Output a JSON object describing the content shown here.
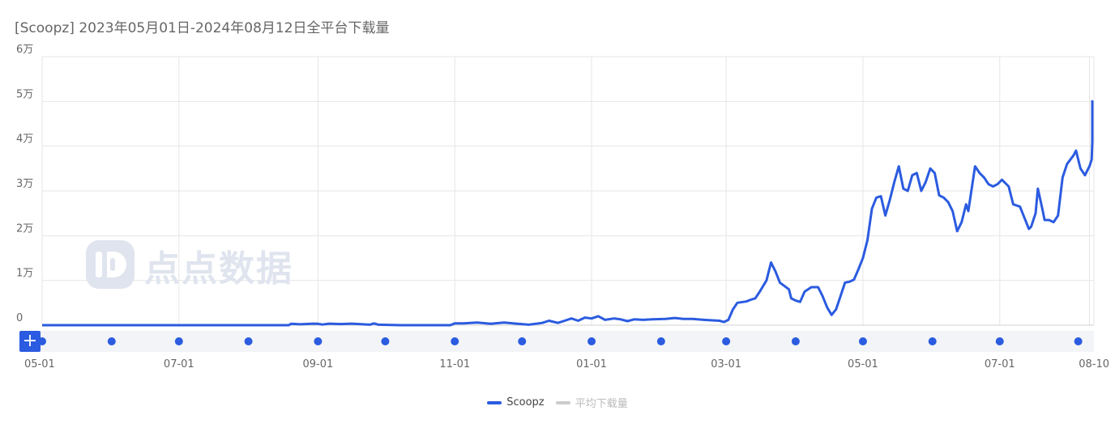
{
  "title": "[Scoopz]  2023年05月01日-2024年08月12日全平台下载量",
  "colors": {
    "series": "#2b5be0",
    "average": "#cccccc",
    "grid": "#e6e6e6",
    "slider_bg": "#f2f4f7",
    "handle": "#2b5be0",
    "dot": "#2b5be0",
    "watermark": "#dfe4ee"
  },
  "watermark": {
    "text": "点点数据",
    "icon": "diandian-logo-icon"
  },
  "chart_data": {
    "type": "line",
    "title": "[Scoopz]  2023年05月01日-2024年08月12日全平台下载量",
    "ylim": [
      0,
      60000
    ],
    "y_ticks": [
      {
        "value": 0,
        "label": "0"
      },
      {
        "value": 10000,
        "label": "1万"
      },
      {
        "value": 20000,
        "label": "2万"
      },
      {
        "value": 30000,
        "label": "3万"
      },
      {
        "value": 40000,
        "label": "4万"
      },
      {
        "value": 50000,
        "label": "5万"
      },
      {
        "value": 60000,
        "label": "6万"
      }
    ],
    "x_ticks": [
      "05-01",
      "07-01",
      "09-01",
      "11-01",
      "01-01",
      "03-01",
      "05-01",
      "07-01",
      "08-10"
    ],
    "x_tick_days": [
      0,
      61,
      123,
      184,
      245,
      305,
      366,
      427,
      467
    ],
    "x_range_days": [
      0,
      469
    ],
    "grid": true,
    "legend_position": "bottom-center",
    "series": [
      {
        "name": "Scoopz",
        "points": [
          [
            0,
            0
          ],
          [
            60,
            0
          ],
          [
            110,
            0
          ],
          [
            111,
            300
          ],
          [
            115,
            200
          ],
          [
            121,
            350
          ],
          [
            123,
            300
          ],
          [
            125,
            150
          ],
          [
            128,
            350
          ],
          [
            133,
            250
          ],
          [
            138,
            350
          ],
          [
            143,
            200
          ],
          [
            146,
            100
          ],
          [
            148,
            400
          ],
          [
            150,
            100
          ],
          [
            160,
            0
          ],
          [
            175,
            0
          ],
          [
            182,
            0
          ],
          [
            184,
            400
          ],
          [
            188,
            400
          ],
          [
            194,
            600
          ],
          [
            200,
            300
          ],
          [
            206,
            600
          ],
          [
            212,
            300
          ],
          [
            217,
            100
          ],
          [
            223,
            500
          ],
          [
            226,
            1000
          ],
          [
            230,
            500
          ],
          [
            233,
            1000
          ],
          [
            236,
            1500
          ],
          [
            239,
            1000
          ],
          [
            242,
            1700
          ],
          [
            245,
            1500
          ],
          [
            248,
            2000
          ],
          [
            251,
            1200
          ],
          [
            255,
            1500
          ],
          [
            258,
            1300
          ],
          [
            261,
            900
          ],
          [
            264,
            1300
          ],
          [
            268,
            1200
          ],
          [
            272,
            1300
          ],
          [
            278,
            1400
          ],
          [
            282,
            1600
          ],
          [
            286,
            1400
          ],
          [
            290,
            1400
          ],
          [
            295,
            1200
          ],
          [
            298,
            1100
          ],
          [
            302,
            1000
          ],
          [
            304,
            700
          ],
          [
            306,
            1200
          ],
          [
            308,
            3500
          ],
          [
            310,
            5000
          ],
          [
            314,
            5300
          ],
          [
            316,
            5700
          ],
          [
            318,
            6000
          ],
          [
            320,
            7500
          ],
          [
            323,
            10000
          ],
          [
            325,
            14000
          ],
          [
            327,
            12000
          ],
          [
            329,
            9500
          ],
          [
            333,
            8000
          ],
          [
            334,
            6000
          ],
          [
            336,
            5500
          ],
          [
            338,
            5200
          ],
          [
            340,
            7500
          ],
          [
            343,
            8500
          ],
          [
            346,
            8500
          ],
          [
            348,
            6500
          ],
          [
            350,
            4000
          ],
          [
            352,
            2300
          ],
          [
            354,
            3500
          ],
          [
            356,
            6500
          ],
          [
            358,
            9500
          ],
          [
            360,
            9700
          ],
          [
            362,
            10200
          ],
          [
            364,
            12500
          ],
          [
            366,
            15000
          ],
          [
            368,
            19000
          ],
          [
            370,
            26000
          ],
          [
            372,
            28500
          ],
          [
            374,
            28800
          ],
          [
            376,
            24500
          ],
          [
            378,
            28000
          ],
          [
            380,
            32000
          ],
          [
            382,
            35500
          ],
          [
            384,
            30500
          ],
          [
            386,
            30000
          ],
          [
            388,
            33500
          ],
          [
            390,
            34000
          ],
          [
            392,
            30000
          ],
          [
            394,
            32000
          ],
          [
            396,
            35000
          ],
          [
            398,
            34000
          ],
          [
            400,
            29000
          ],
          [
            402,
            28500
          ],
          [
            404,
            27500
          ],
          [
            406,
            25500
          ],
          [
            408,
            21000
          ],
          [
            410,
            23000
          ],
          [
            412,
            27000
          ],
          [
            413,
            25500
          ],
          [
            416,
            35500
          ],
          [
            418,
            34000
          ],
          [
            420,
            33000
          ],
          [
            422,
            31500
          ],
          [
            424,
            31000
          ],
          [
            426,
            31500
          ],
          [
            428,
            32500
          ],
          [
            431,
            31000
          ],
          [
            433,
            27000
          ],
          [
            436,
            26500
          ],
          [
            438,
            24000
          ],
          [
            440,
            21500
          ],
          [
            441,
            22000
          ],
          [
            443,
            25000
          ],
          [
            444,
            30500
          ],
          [
            446,
            26000
          ],
          [
            447,
            23500
          ],
          [
            449,
            23500
          ],
          [
            451,
            23000
          ],
          [
            453,
            24500
          ],
          [
            455,
            33000
          ],
          [
            457,
            36000
          ],
          [
            460,
            38000
          ],
          [
            461,
            39000
          ],
          [
            463,
            35000
          ],
          [
            465,
            33500
          ],
          [
            467,
            35500
          ],
          [
            468,
            37000
          ],
          [
            470,
            41000
          ],
          [
            472,
            43500
          ],
          [
            474,
            44500
          ],
          [
            476,
            46000
          ],
          [
            478,
            49500
          ],
          [
            479,
            50000
          ],
          [
            481,
            45000
          ],
          [
            483,
            43500
          ],
          [
            485,
            46500
          ],
          [
            487,
            46000
          ]
        ]
      },
      {
        "name": "平均下载量",
        "points": []
      }
    ]
  }
}
